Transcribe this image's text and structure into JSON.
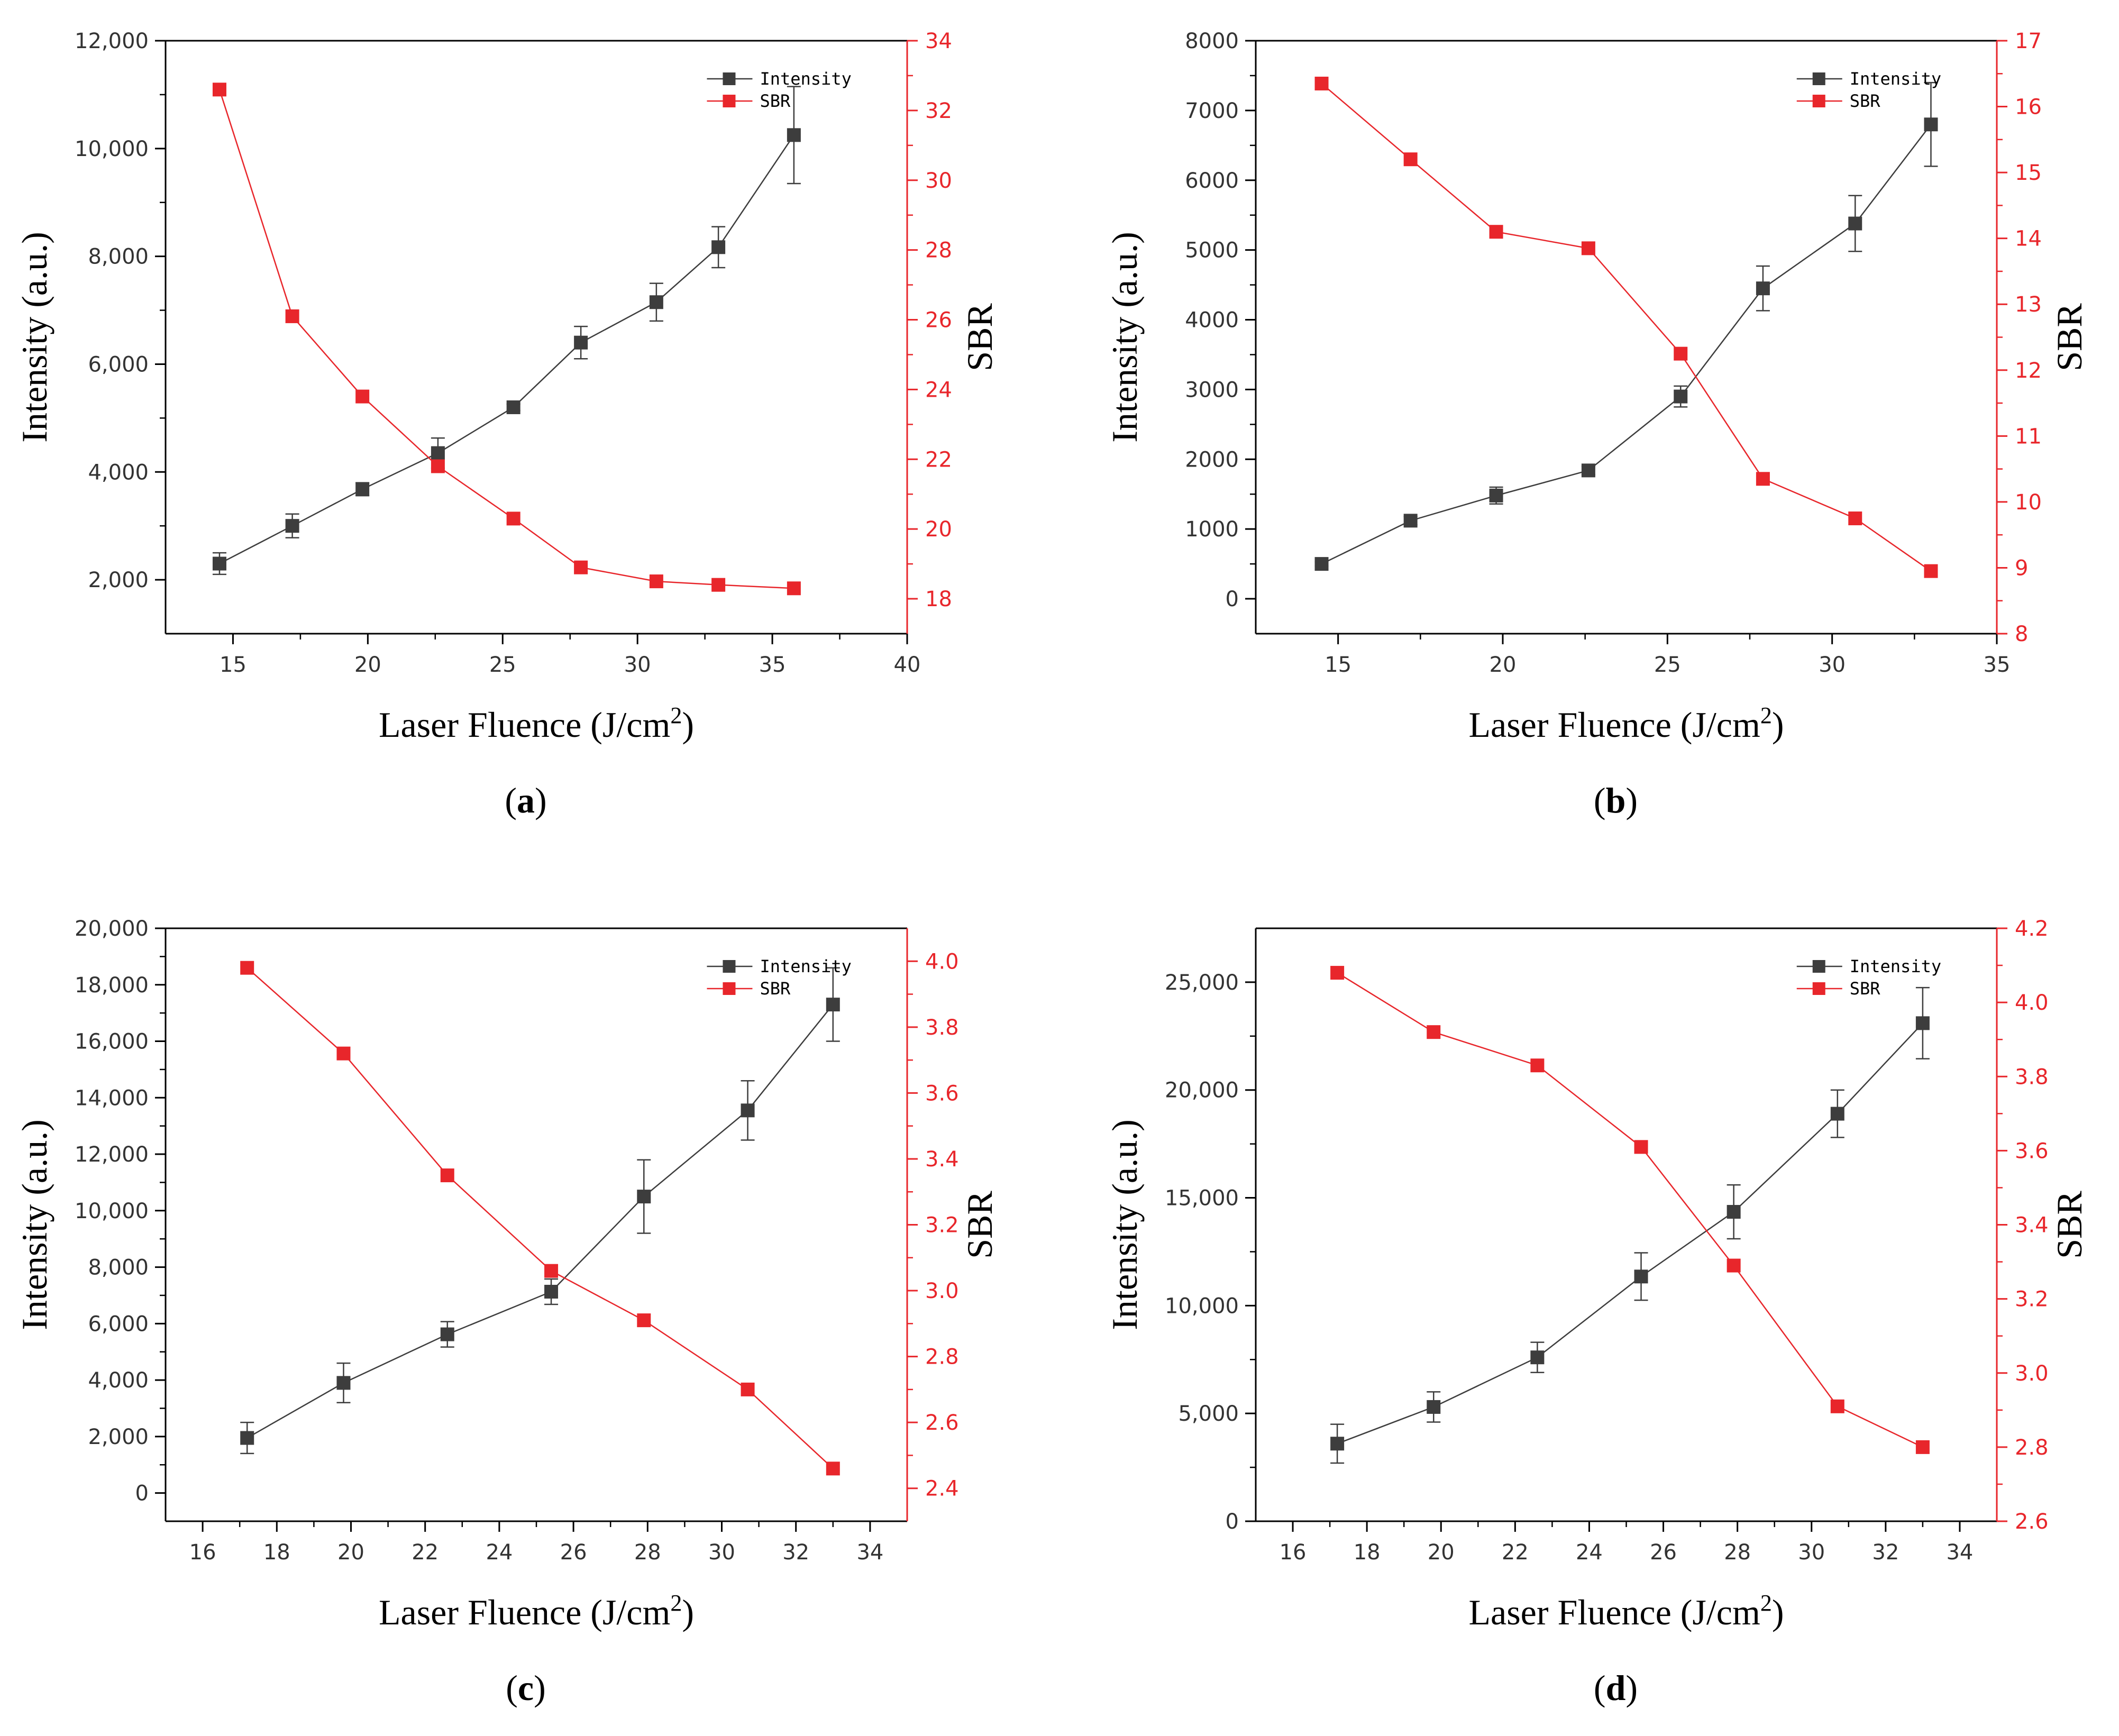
{
  "colors": {
    "intensity": "#3d3d3d",
    "sbr": "#e8262b",
    "axis": "#000000"
  },
  "chart_data": [
    {
      "type": "line",
      "panel_label": "a",
      "xlabel": "Laser Fluence (J/cm",
      "xlabel_sup": "2",
      "xlabel_close": ")",
      "ylabel_left": "Intensity (a.u.)",
      "ylabel_right": "SBR",
      "xlim": [
        12.5,
        40
      ],
      "ylim_left": [
        1000,
        12000
      ],
      "ylim_right": [
        17,
        34
      ],
      "xticks": [
        15,
        20,
        25,
        30,
        35,
        40
      ],
      "xtick_labels": [
        "15",
        "20",
        "25",
        "30",
        "35",
        "40"
      ],
      "yticks_left": [
        2000,
        4000,
        6000,
        8000,
        10000,
        12000
      ],
      "ytick_labels_left": [
        "2,000",
        "4,000",
        "6,000",
        "8,000",
        "10,000",
        "12,000"
      ],
      "yticks_right": [
        18,
        20,
        22,
        24,
        26,
        28,
        30,
        32,
        34
      ],
      "ytick_labels_right": [
        "18",
        "20",
        "22",
        "24",
        "26",
        "28",
        "30",
        "32",
        "34"
      ],
      "legend": [
        "Intensity",
        "SBR"
      ],
      "legend_position": "top-right",
      "series": [
        {
          "name": "Intensity",
          "axis": "left",
          "x": [
            14.5,
            17.2,
            19.8,
            22.6,
            25.4,
            27.9,
            30.7,
            33.0,
            35.8
          ],
          "y": [
            2300,
            3000,
            3680,
            4350,
            5200,
            6400,
            7150,
            8170,
            10250
          ],
          "err": [
            200,
            220,
            120,
            280,
            60,
            300,
            350,
            380,
            900
          ]
        },
        {
          "name": "SBR",
          "axis": "right",
          "x": [
            14.5,
            17.2,
            19.8,
            22.6,
            25.4,
            27.9,
            30.7,
            33.0,
            35.8
          ],
          "y": [
            32.6,
            26.1,
            23.8,
            21.8,
            20.3,
            18.9,
            18.5,
            18.4,
            18.3
          ]
        }
      ]
    },
    {
      "type": "line",
      "panel_label": "b",
      "xlabel": "Laser Fluence (J/cm",
      "xlabel_sup": "2",
      "xlabel_close": ")",
      "ylabel_left": "Intensity (a.u.)",
      "ylabel_right": "SBR",
      "xlim": [
        12.5,
        35
      ],
      "ylim_left": [
        -500,
        8000
      ],
      "ylim_right": [
        8,
        17
      ],
      "xticks": [
        15,
        20,
        25,
        30,
        35
      ],
      "xtick_labels": [
        "15",
        "20",
        "25",
        "30",
        "35"
      ],
      "yticks_left": [
        0,
        1000,
        2000,
        3000,
        4000,
        5000,
        6000,
        7000,
        8000
      ],
      "ytick_labels_left": [
        "0",
        "1000",
        "2000",
        "3000",
        "4000",
        "5000",
        "6000",
        "7000",
        "8000"
      ],
      "yticks_right": [
        8,
        9,
        10,
        11,
        12,
        13,
        14,
        15,
        16,
        17
      ],
      "ytick_labels_right": [
        "8",
        "9",
        "10",
        "11",
        "12",
        "13",
        "14",
        "15",
        "16",
        "17"
      ],
      "legend": [
        "Intensity",
        "SBR"
      ],
      "legend_position": "top-right",
      "series": [
        {
          "name": "Intensity",
          "axis": "left",
          "x": [
            14.5,
            17.2,
            19.8,
            22.6,
            25.4,
            27.9,
            30.7,
            33.0
          ],
          "y": [
            500,
            1120,
            1480,
            1840,
            2900,
            4450,
            5380,
            6800
          ],
          "err": [
            30,
            60,
            120,
            60,
            150,
            320,
            400,
            600
          ]
        },
        {
          "name": "SBR",
          "axis": "right",
          "x": [
            14.5,
            17.2,
            19.8,
            22.6,
            25.4,
            27.9,
            30.7,
            33.0
          ],
          "y": [
            16.35,
            15.2,
            14.1,
            13.85,
            12.25,
            10.35,
            9.75,
            8.95
          ]
        }
      ]
    },
    {
      "type": "line",
      "panel_label": "c",
      "xlabel": "Laser Fluence (J/cm",
      "xlabel_sup": "2",
      "xlabel_close": ")",
      "ylabel_left": "Intensity (a.u.)",
      "ylabel_right": "SBR",
      "xlim": [
        15,
        35
      ],
      "ylim_left": [
        -1000,
        20000
      ],
      "ylim_right": [
        2.3,
        4.1
      ],
      "xticks": [
        16,
        18,
        20,
        22,
        24,
        26,
        28,
        30,
        32,
        34
      ],
      "xtick_labels": [
        "16",
        "18",
        "20",
        "22",
        "24",
        "26",
        "28",
        "30",
        "32",
        "34"
      ],
      "yticks_left": [
        0,
        2000,
        4000,
        6000,
        8000,
        10000,
        12000,
        14000,
        16000,
        18000,
        20000
      ],
      "ytick_labels_left": [
        "0",
        "2,000",
        "4,000",
        "6,000",
        "8,000",
        "10,000",
        "12,000",
        "14,000",
        "16,000",
        "18,000",
        "20,000"
      ],
      "yticks_right": [
        2.4,
        2.6,
        2.8,
        3.0,
        3.2,
        3.4,
        3.6,
        3.8,
        4.0
      ],
      "ytick_labels_right": [
        "2.4",
        "2.6",
        "2.8",
        "3.0",
        "3.2",
        "3.4",
        "3.6",
        "3.8",
        "4.0"
      ],
      "legend": [
        "Intensity",
        "SBR"
      ],
      "legend_position": "top-right",
      "series": [
        {
          "name": "Intensity",
          "axis": "left",
          "x": [
            17.2,
            19.8,
            22.6,
            25.4,
            27.9,
            30.7,
            33.0
          ],
          "y": [
            1950,
            3900,
            5620,
            7130,
            10500,
            13550,
            17300
          ],
          "err": [
            550,
            700,
            450,
            450,
            1300,
            1050,
            1300
          ]
        },
        {
          "name": "SBR",
          "axis": "right",
          "x": [
            17.2,
            19.8,
            22.6,
            25.4,
            27.9,
            30.7,
            33.0
          ],
          "y": [
            3.98,
            3.72,
            3.35,
            3.06,
            2.91,
            2.7,
            2.46
          ]
        }
      ]
    },
    {
      "type": "line",
      "panel_label": "d",
      "xlabel": "Laser Fluence (J/cm",
      "xlabel_sup": "2",
      "xlabel_close": ")",
      "ylabel_left": "Intensity (a.u.)",
      "ylabel_right": "SBR",
      "xlim": [
        15,
        35
      ],
      "ylim_left": [
        0,
        27500
      ],
      "ylim_right": [
        2.6,
        4.2
      ],
      "xticks": [
        16,
        18,
        20,
        22,
        24,
        26,
        28,
        30,
        32,
        34
      ],
      "xtick_labels": [
        "16",
        "18",
        "20",
        "22",
        "24",
        "26",
        "28",
        "30",
        "32",
        "34"
      ],
      "yticks_left": [
        0,
        5000,
        10000,
        15000,
        20000,
        25000
      ],
      "ytick_labels_left": [
        "0",
        "5,000",
        "10,000",
        "15,000",
        "20,000",
        "25,000"
      ],
      "yticks_right": [
        2.6,
        2.8,
        3.0,
        3.2,
        3.4,
        3.6,
        3.8,
        4.0,
        4.2
      ],
      "ytick_labels_right": [
        "2.6",
        "2.8",
        "3.0",
        "3.2",
        "3.4",
        "3.6",
        "3.8",
        "4.0",
        "4.2"
      ],
      "legend": [
        "Intensity",
        "SBR"
      ],
      "legend_position": "top-right",
      "series": [
        {
          "name": "Intensity",
          "axis": "left",
          "x": [
            17.2,
            19.8,
            22.6,
            25.4,
            27.9,
            30.7,
            33.0
          ],
          "y": [
            3600,
            5300,
            7600,
            11350,
            14350,
            18900,
            23100
          ],
          "err": [
            900,
            700,
            700,
            1100,
            1250,
            1100,
            1650
          ]
        },
        {
          "name": "SBR",
          "axis": "right",
          "x": [
            17.2,
            19.8,
            22.6,
            25.4,
            27.9,
            30.7,
            33.0
          ],
          "y": [
            4.08,
            3.92,
            3.83,
            3.61,
            3.29,
            2.91,
            2.8
          ]
        }
      ]
    }
  ]
}
